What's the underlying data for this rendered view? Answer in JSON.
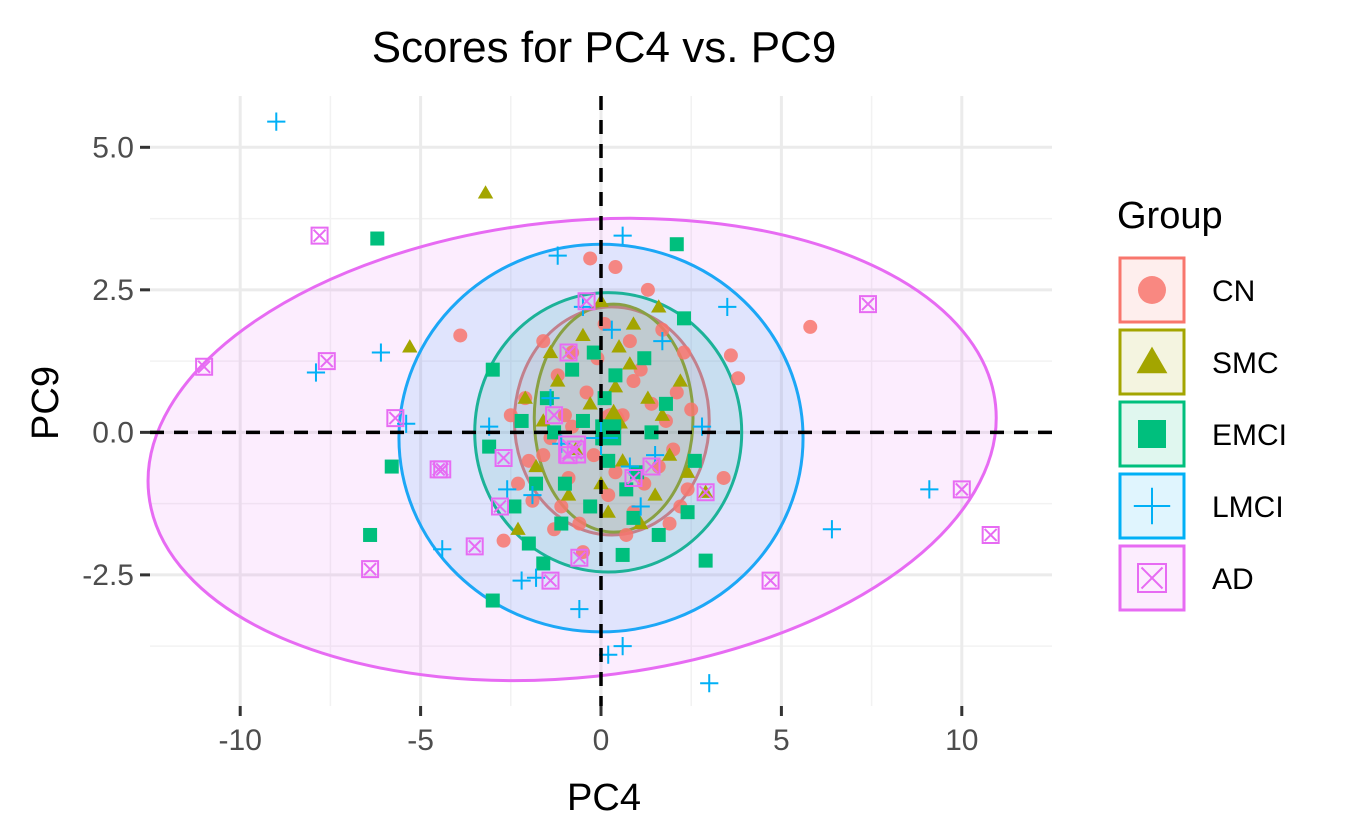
{
  "chart_data": {
    "type": "scatter",
    "title": "Scores for PC4 vs. PC9",
    "xlabel": "PC4",
    "ylabel": "PC9",
    "xlim": [
      -12.5,
      12.5
    ],
    "ylim": [
      -4.8,
      5.9
    ],
    "x_ticks": [
      -10,
      -5,
      0,
      5,
      10
    ],
    "x_tick_labels": [
      "-10",
      "-5",
      "0",
      "5",
      "10"
    ],
    "y_ticks": [
      -2.5,
      0.0,
      2.5,
      5.0
    ],
    "y_tick_labels": [
      "-2.5",
      "0.0",
      "2.5",
      "5.0"
    ],
    "grid": true,
    "reference_lines": {
      "x": 0,
      "y": 0,
      "style": "dashed"
    },
    "legend": {
      "title": "Group",
      "position": "right"
    },
    "series": [
      {
        "name": "CN",
        "color": "#F8766D",
        "marker": "circle",
        "ellipse": {
          "cx": 0.3,
          "cy": 0.2,
          "rx": 2.7,
          "ry": 2.0,
          "angle_deg": 0
        },
        "points": [
          [
            -0.3,
            3.05
          ],
          [
            0.4,
            2.9
          ],
          [
            1.3,
            2.5
          ],
          [
            -3.9,
            1.7
          ],
          [
            5.8,
            1.85
          ],
          [
            3.6,
            1.35
          ],
          [
            3.8,
            0.95
          ],
          [
            2.3,
            1.4
          ],
          [
            2.1,
            0.7
          ],
          [
            1.8,
            0.2
          ],
          [
            -2.1,
            0.6
          ],
          [
            -1.2,
            1.0
          ],
          [
            -0.8,
            1.4
          ],
          [
            0.8,
            1.6
          ],
          [
            1.1,
            1.1
          ],
          [
            -0.4,
            0.7
          ],
          [
            -1.6,
            -0.4
          ],
          [
            -0.9,
            -0.8
          ],
          [
            0.2,
            -1.1
          ],
          [
            0.9,
            -1.4
          ],
          [
            -1.3,
            -1.7
          ],
          [
            -2.7,
            -1.9
          ],
          [
            -0.5,
            -2.1
          ],
          [
            1.6,
            -0.6
          ],
          [
            2.4,
            -1.0
          ],
          [
            3.4,
            -0.8
          ],
          [
            -1.9,
            -1.2
          ],
          [
            0.6,
            0.3
          ],
          [
            -0.2,
            -0.4
          ],
          [
            1.4,
            0.5
          ],
          [
            -1.0,
            0.3
          ],
          [
            2.0,
            -0.3
          ],
          [
            -2.3,
            -0.9
          ],
          [
            0.1,
            1.9
          ],
          [
            -1.6,
            1.6
          ],
          [
            1.9,
            -1.6
          ],
          [
            0.7,
            -1.8
          ],
          [
            -1.1,
            -1.3
          ],
          [
            1.2,
            -0.9
          ],
          [
            -0.6,
            -1.6
          ],
          [
            2.5,
            0.4
          ],
          [
            -2.5,
            0.3
          ],
          [
            0.9,
            0.9
          ],
          [
            -1.4,
            -0.1
          ],
          [
            0.4,
            -0.7
          ],
          [
            -0.8,
            0.1
          ],
          [
            1.7,
            1.8
          ],
          [
            -0.1,
            1.3
          ],
          [
            2.2,
            -1.3
          ],
          [
            -2.0,
            -0.5
          ]
        ]
      },
      {
        "name": "SMC",
        "color": "#A3A500",
        "marker": "triangle",
        "ellipse": {
          "cx": 0.35,
          "cy": 0.25,
          "rx": 2.2,
          "ry": 2.0,
          "angle_deg": 0
        },
        "points": [
          [
            -3.2,
            4.2
          ],
          [
            -5.3,
            1.5
          ],
          [
            0.0,
            2.3
          ],
          [
            1.6,
            2.2
          ],
          [
            2.9,
            -1.05
          ],
          [
            -2.3,
            -1.7
          ],
          [
            0.3,
            0.3
          ],
          [
            0.8,
            1.2
          ],
          [
            -0.5,
            1.7
          ],
          [
            1.3,
            0.6
          ],
          [
            -1.2,
            0.9
          ],
          [
            0.6,
            -0.5
          ],
          [
            1.9,
            -0.4
          ],
          [
            -1.8,
            -0.6
          ],
          [
            0.2,
            -1.4
          ],
          [
            1.5,
            -1.1
          ],
          [
            -0.9,
            -1.1
          ],
          [
            2.2,
            0.9
          ],
          [
            0.9,
            1.9
          ],
          [
            -0.3,
            0.5
          ],
          [
            -1.6,
            0.2
          ],
          [
            1.1,
            -1.6
          ],
          [
            0.5,
            1.5
          ],
          [
            -0.7,
            -0.3
          ],
          [
            1.7,
            0.3
          ],
          [
            0.0,
            -0.9
          ],
          [
            -1.4,
            1.4
          ],
          [
            2.4,
            -0.7
          ],
          [
            0.4,
            0.8
          ],
          [
            -2.1,
            0.6
          ]
        ]
      },
      {
        "name": "EMCI",
        "color": "#00BF7D",
        "marker": "square",
        "ellipse": {
          "cx": 0.2,
          "cy": 0.0,
          "rx": 3.7,
          "ry": 2.45,
          "angle_deg": 0
        },
        "points": [
          [
            -6.2,
            3.4
          ],
          [
            2.1,
            3.3
          ],
          [
            2.3,
            2.0
          ],
          [
            -3.0,
            1.1
          ],
          [
            -5.8,
            -0.6
          ],
          [
            -6.4,
            -1.8
          ],
          [
            -3.0,
            -2.95
          ],
          [
            2.9,
            -2.25
          ],
          [
            2.4,
            -1.4
          ],
          [
            1.6,
            -1.8
          ],
          [
            0.6,
            -2.15
          ],
          [
            -1.6,
            -2.3
          ],
          [
            -2.0,
            -1.95
          ],
          [
            -3.1,
            -0.25
          ],
          [
            -1.0,
            -0.9
          ],
          [
            -0.3,
            -1.3
          ],
          [
            1.0,
            -0.7
          ],
          [
            -1.5,
            0.6
          ],
          [
            0.4,
            1.0
          ],
          [
            -0.5,
            0.2
          ],
          [
            1.8,
            0.5
          ],
          [
            -1.8,
            -0.9
          ],
          [
            0.2,
            -0.5
          ],
          [
            1.2,
            1.3
          ],
          [
            -0.8,
            1.1
          ],
          [
            -2.2,
            0.2
          ],
          [
            2.6,
            -0.5
          ],
          [
            -1.1,
            -1.6
          ],
          [
            0.7,
            -1.0
          ],
          [
            -0.2,
            1.4
          ],
          [
            -1.3,
            0.0
          ],
          [
            1.4,
            0.0
          ],
          [
            0.9,
            -1.5
          ],
          [
            -2.4,
            -1.3
          ],
          [
            0.1,
            0.6
          ]
        ]
      },
      {
        "name": "LMCI",
        "color": "#00B0F6",
        "marker": "plus",
        "ellipse": {
          "cx": 0.0,
          "cy": -0.1,
          "rx": 5.6,
          "ry": 3.4,
          "angle_deg": 0
        },
        "points": [
          [
            -9.0,
            5.45
          ],
          [
            0.6,
            3.45
          ],
          [
            -1.2,
            3.1
          ],
          [
            3.5,
            2.2
          ],
          [
            -6.1,
            1.4
          ],
          [
            -7.9,
            1.05
          ],
          [
            -5.4,
            0.15
          ],
          [
            9.1,
            -1.0
          ],
          [
            6.4,
            -1.7
          ],
          [
            -4.4,
            -2.05
          ],
          [
            -2.2,
            -2.6
          ],
          [
            -1.8,
            -2.55
          ],
          [
            -0.6,
            -3.1
          ],
          [
            0.2,
            -3.9
          ],
          [
            0.6,
            -3.75
          ],
          [
            3.0,
            -4.4
          ],
          [
            -2.6,
            -1.0
          ],
          [
            -1.4,
            0.6
          ],
          [
            0.8,
            -0.6
          ],
          [
            1.7,
            1.6
          ],
          [
            -0.5,
            2.2
          ],
          [
            -1.9,
            -1.1
          ],
          [
            0.3,
            1.8
          ],
          [
            1.5,
            -0.4
          ],
          [
            -1.1,
            -0.2
          ],
          [
            2.8,
            0.1
          ],
          [
            -3.1,
            0.1
          ],
          [
            1.1,
            -1.3
          ]
        ]
      },
      {
        "name": "AD",
        "color": "#E76BF3",
        "marker": "square-x",
        "ellipse": {
          "cx": -0.8,
          "cy": -0.3,
          "rx": 11.8,
          "ry": 4.0,
          "angle_deg": -6
        },
        "points": [
          [
            -7.8,
            3.45
          ],
          [
            7.4,
            2.25
          ],
          [
            -11.0,
            1.15
          ],
          [
            -7.6,
            1.25
          ],
          [
            -5.7,
            0.25
          ],
          [
            -4.4,
            -0.65
          ],
          [
            -4.5,
            -0.65
          ],
          [
            10.0,
            -1.0
          ],
          [
            10.8,
            -1.8
          ],
          [
            4.7,
            -2.6
          ],
          [
            -6.4,
            -2.4
          ],
          [
            -3.5,
            -2.0
          ],
          [
            -1.4,
            -2.6
          ],
          [
            -0.6,
            -2.2
          ],
          [
            -0.7,
            -0.3
          ],
          [
            -0.9,
            -0.4
          ],
          [
            -0.4,
            2.3
          ],
          [
            2.9,
            -1.05
          ],
          [
            -2.8,
            -1.3
          ],
          [
            -2.7,
            -0.45
          ],
          [
            1.4,
            -0.6
          ],
          [
            -1.3,
            0.3
          ],
          [
            -0.9,
            1.4
          ],
          [
            0.9,
            -0.8
          ]
        ]
      }
    ]
  }
}
